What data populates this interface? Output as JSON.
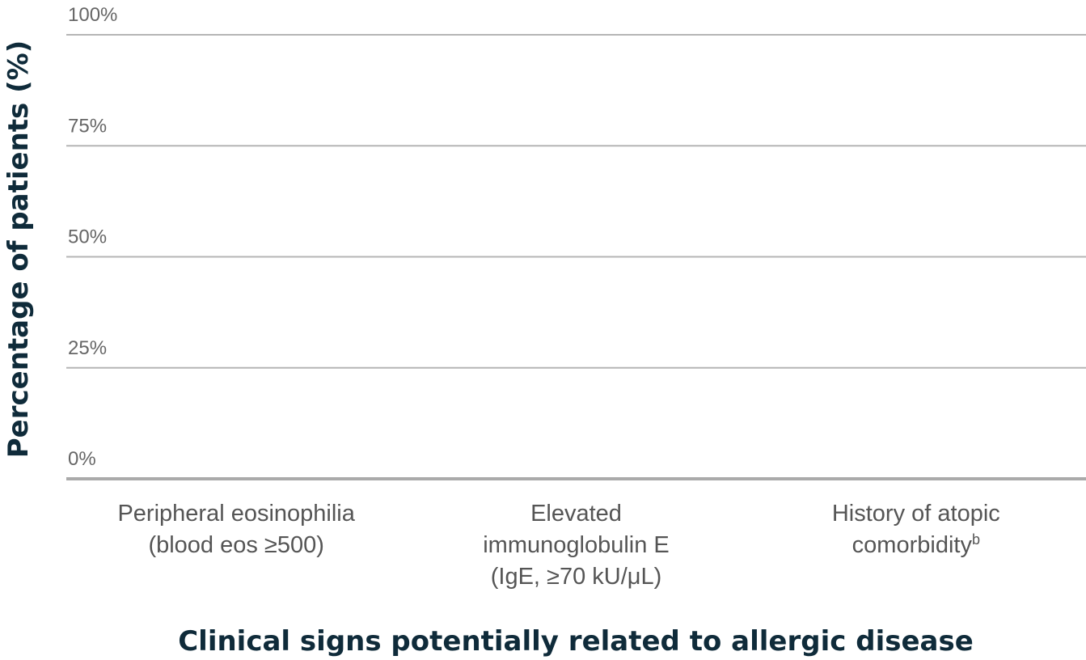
{
  "chart_data": {
    "type": "bar",
    "title": "",
    "ylabel": "Percentage of patients (%)",
    "xlabel": "Clinical signs potentially related to allergic disease",
    "ylim": [
      0,
      100
    ],
    "yticks": [
      "0%",
      "25%",
      "50%",
      "75%",
      "100%"
    ],
    "ytick_values": [
      0,
      25,
      50,
      75,
      100
    ],
    "grid": true,
    "categories": [
      {
        "lines": [
          "Peripheral eosinophilia",
          "(blood eos ≥500)"
        ],
        "sup": ""
      },
      {
        "lines": [
          "Elevated",
          "immunoglobulin E",
          "(IgE, ≥70 kU/μL)"
        ],
        "sup": ""
      },
      {
        "lines": [
          "History of atopic",
          "comorbidity"
        ],
        "sup": "b"
      }
    ],
    "series": [],
    "colors": {
      "axis_title": "#0f2b3a",
      "tick_label": "#666666",
      "category_label": "#555555",
      "grid": "#b5b5b5"
    }
  }
}
